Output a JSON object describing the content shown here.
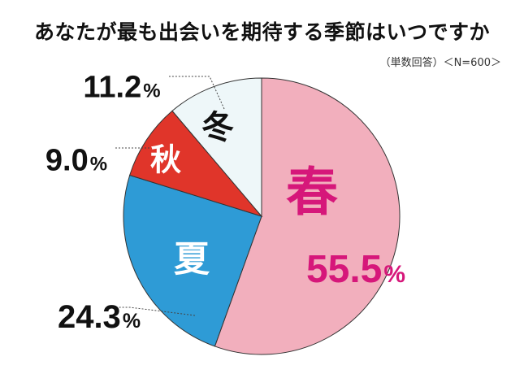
{
  "chart_data": {
    "type": "pie",
    "title": "あなたが最も出会いを期待する季節はいつですか",
    "subtitle": "（単数回答）＜N=600＞",
    "unit": "%",
    "slices": [
      {
        "label": "春",
        "value": 55.5,
        "value_label": "55.5",
        "color": "#f2afbd",
        "label_color": "#d6177a",
        "value_color": "#d6177a"
      },
      {
        "label": "夏",
        "value": 24.3,
        "value_label": "24.3",
        "color": "#2e9bd6",
        "label_color": "#ffffff",
        "value_color": "#111111"
      },
      {
        "label": "秋",
        "value": 9.0,
        "value_label": "9.0",
        "color": "#e0352a",
        "label_color": "#ffffff",
        "value_color": "#111111"
      },
      {
        "label": "冬",
        "value": 11.2,
        "value_label": "11.2",
        "color": "#eef7f9",
        "label_color": "#111111",
        "value_color": "#111111"
      }
    ]
  }
}
